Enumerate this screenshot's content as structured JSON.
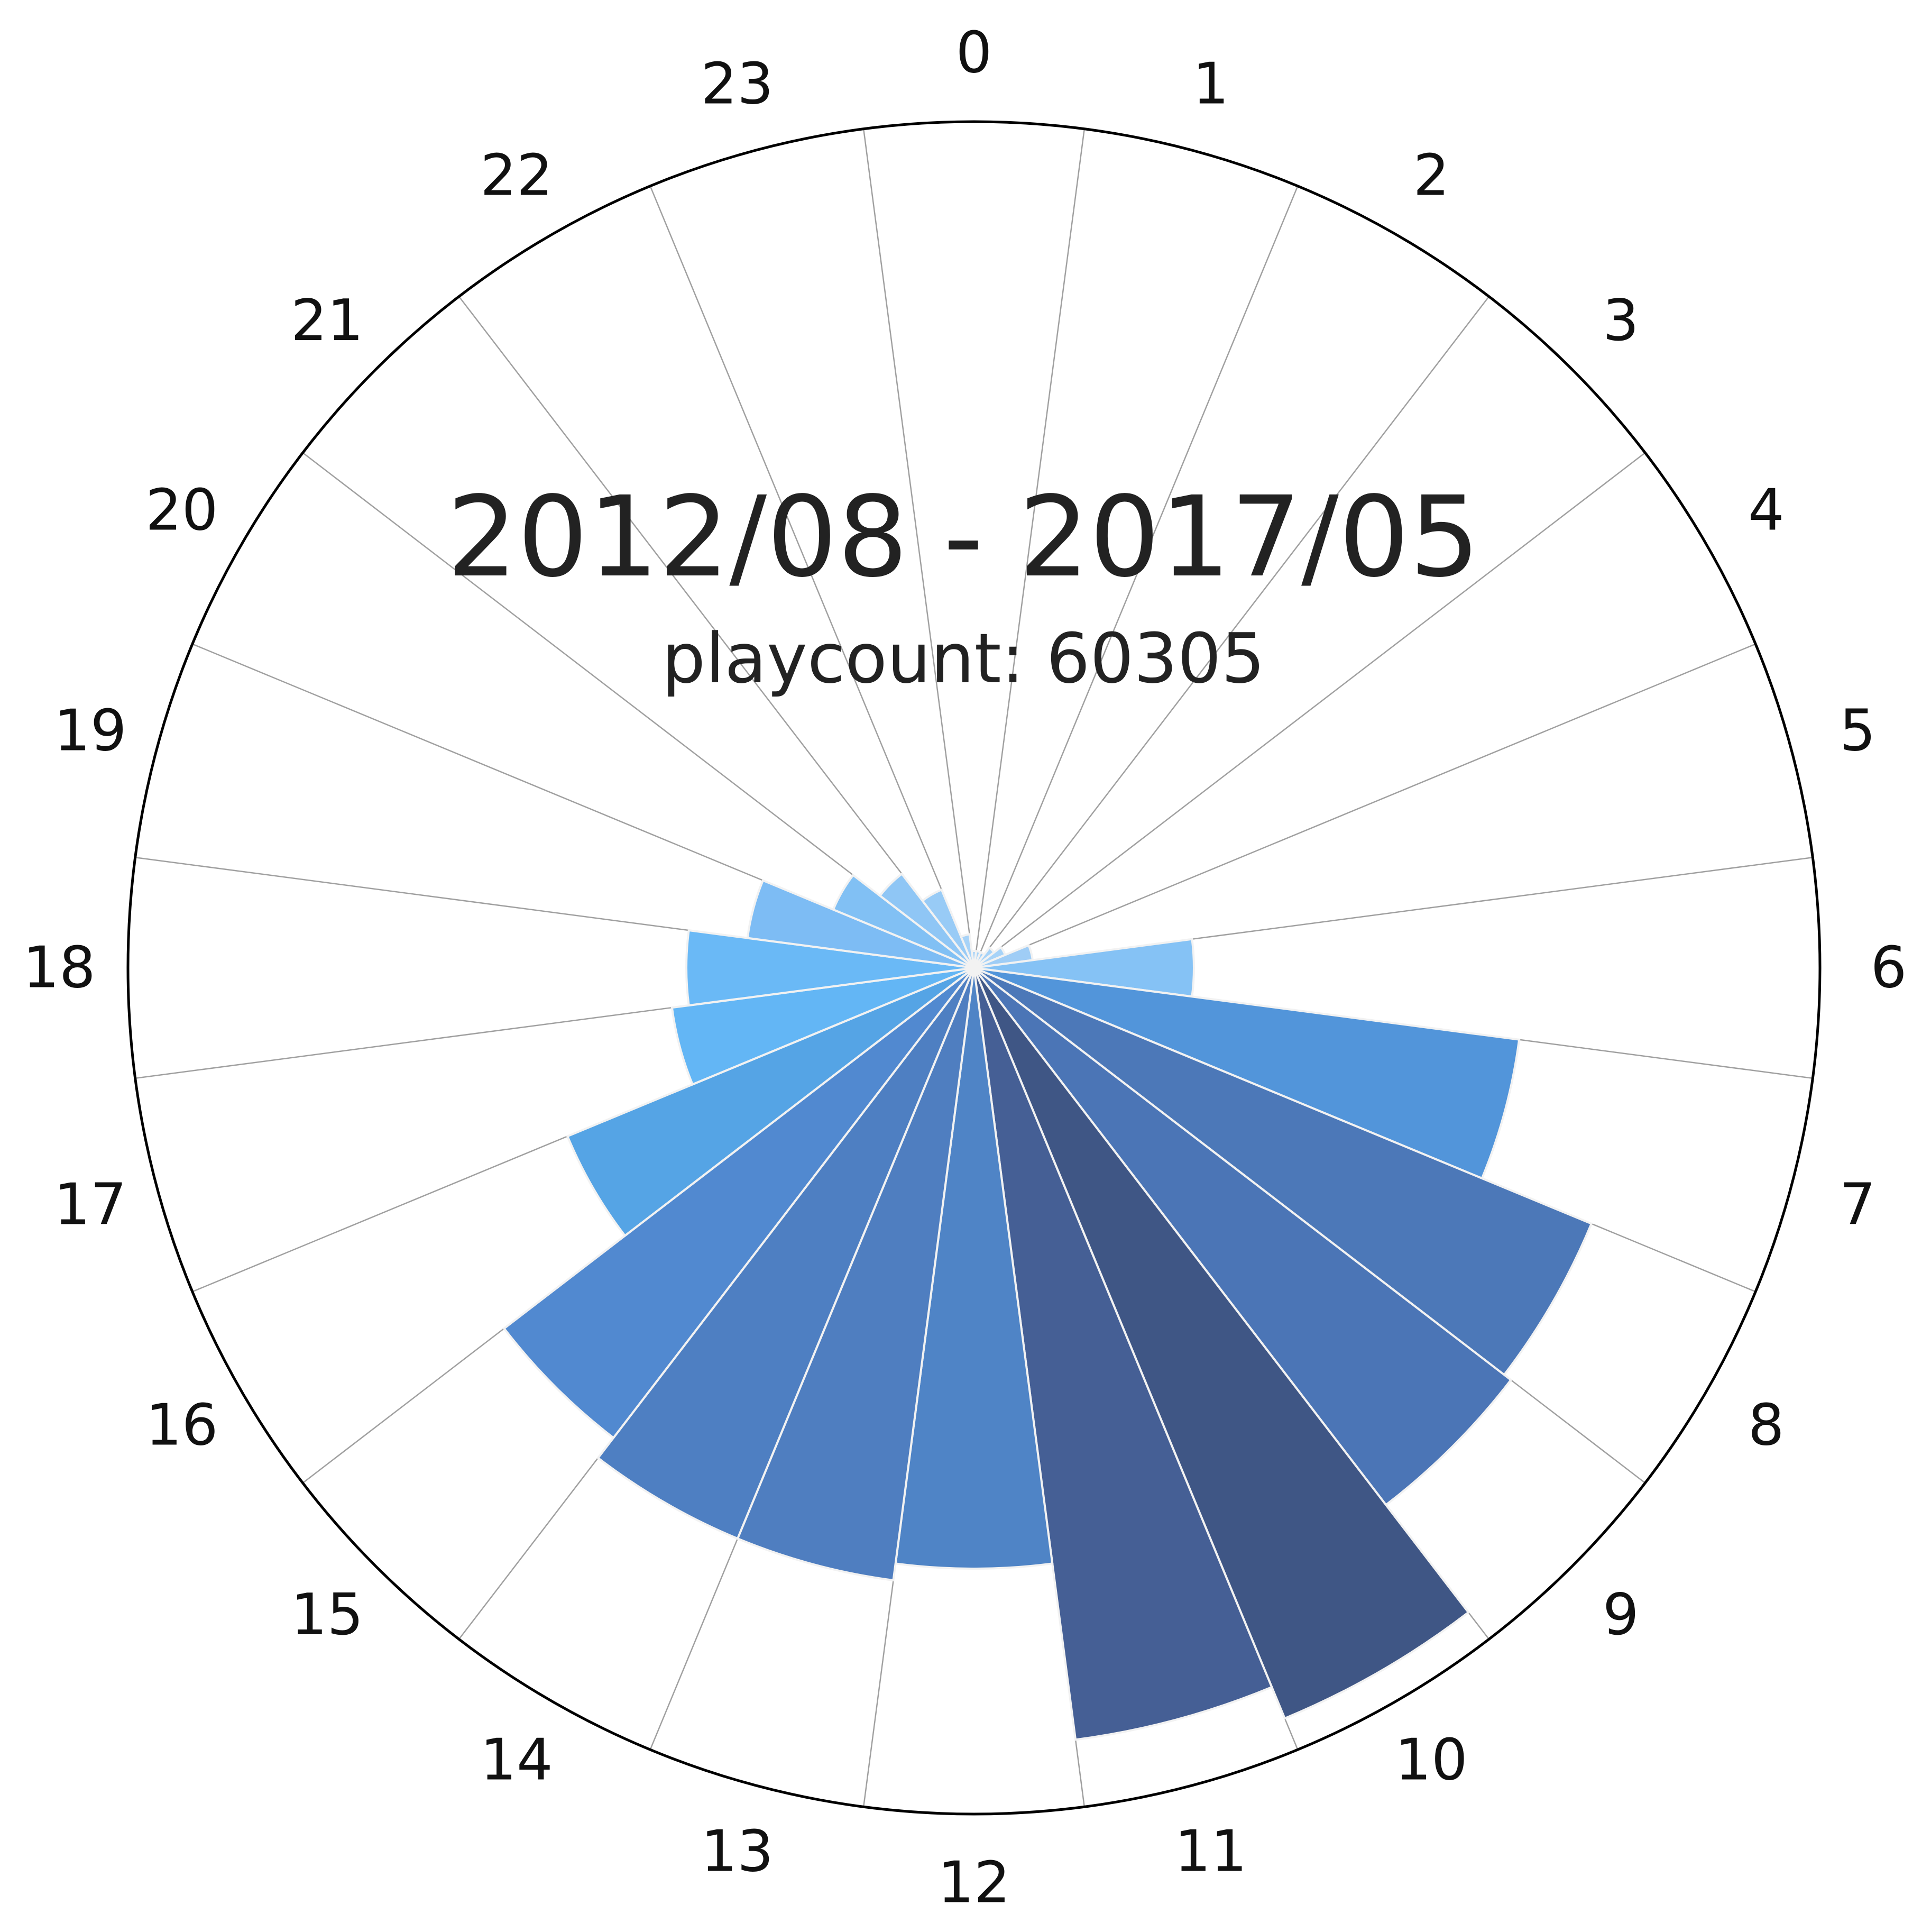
{
  "chart_data": {
    "type": "bar",
    "projection": "polar",
    "title": "2012/08 - 2017/05",
    "subtitle": "playcount: 60305",
    "categories": [
      "0",
      "1",
      "2",
      "3",
      "4",
      "5",
      "6",
      "7",
      "8",
      "9",
      "10",
      "11",
      "12",
      "13",
      "14",
      "15",
      "16",
      "17",
      "18",
      "19",
      "20",
      "21",
      "22",
      "23"
    ],
    "values": [
      0.02,
      0.02,
      0.02,
      0.03,
      0.04,
      0.07,
      0.26,
      0.65,
      0.79,
      0.8,
      0.96,
      0.92,
      0.71,
      0.73,
      0.73,
      0.7,
      0.52,
      0.36,
      0.34,
      0.27,
      0.18,
      0.14,
      0.1,
      0.04
    ],
    "ylim": [
      0,
      1
    ],
    "grid": true,
    "colors": [
      "#a7d3f8",
      "#a7d3f8",
      "#a7d3f8",
      "#a7d3f8",
      "#a7d3f8",
      "#9fcdf6",
      "#85c2f5",
      "#5295da",
      "#4c78b8",
      "#4b75b6",
      "#3f5685",
      "#455f95",
      "#4f84c6",
      "#4f7ec0",
      "#4e7fc2",
      "#5189d0",
      "#55a4e5",
      "#63b6f5",
      "#6ab9f6",
      "#7dbcf4",
      "#81c0f4",
      "#8fc6f5",
      "#98cbf6",
      "#a7d3f8"
    ]
  }
}
